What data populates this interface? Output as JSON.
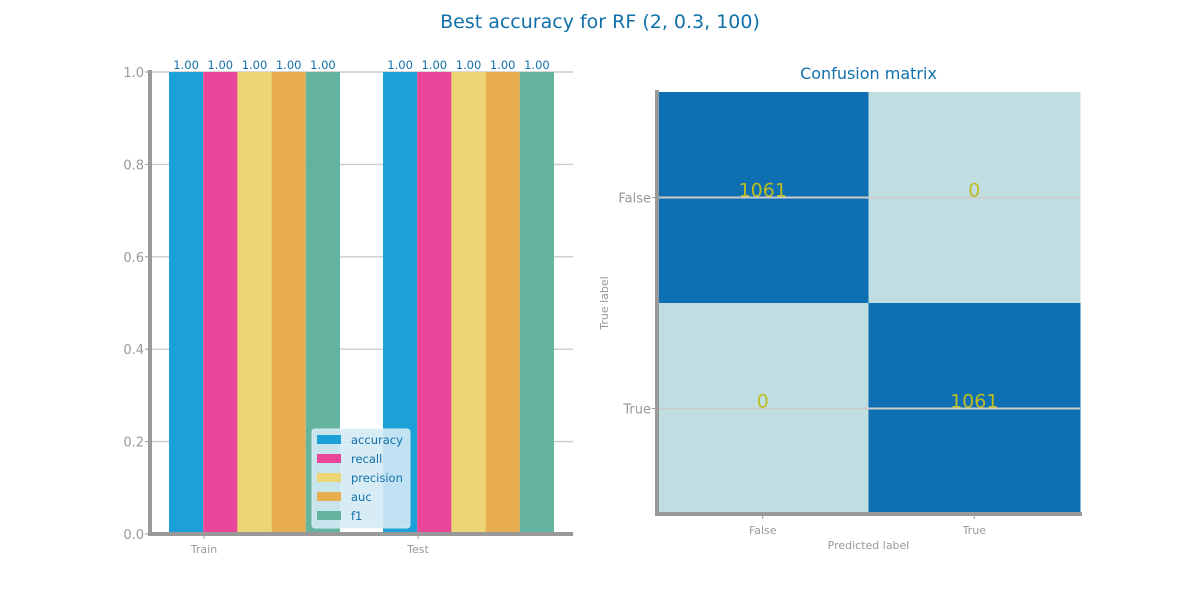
{
  "suptitle": "Best accuracy for RF (2, 0.3, 100)",
  "colors": {
    "title": "#1170aa",
    "tick": "#999999",
    "axis": "#999999",
    "grid": "#cccccc",
    "cm_text": "#bcbd22",
    "cm_high": "#0e6fb3",
    "cm_low": "#c0dee2",
    "legend_bg": "#d4eaf5"
  },
  "chart_data": [
    {
      "type": "bar",
      "title": "",
      "categories": [
        "Train",
        "Test"
      ],
      "series": [
        {
          "name": "accuracy",
          "color": "#1ba1d8",
          "values": [
            1.0,
            1.0
          ]
        },
        {
          "name": "recall",
          "color": "#ea4699",
          "values": [
            1.0,
            1.0
          ]
        },
        {
          "name": "precision",
          "color": "#ebd574",
          "values": [
            1.0,
            1.0
          ]
        },
        {
          "name": "auc",
          "color": "#e8ad4e",
          "values": [
            1.0,
            1.0
          ]
        },
        {
          "name": "f1",
          "color": "#63b39f",
          "values": [
            1.0,
            1.0
          ]
        }
      ],
      "data_labels": [
        [
          "1.00",
          "1.00",
          "1.00",
          "1.00",
          "1.00"
        ],
        [
          "1.00",
          "1.00",
          "1.00",
          "1.00",
          "1.00"
        ]
      ],
      "ylim": [
        0.0,
        1.0
      ],
      "yticks": [
        "0.0",
        "0.2",
        "0.4",
        "0.6",
        "0.8",
        "1.0"
      ],
      "grid": "horizontal",
      "legend": "lower-right"
    },
    {
      "type": "heatmap",
      "title": "Confusion matrix",
      "xlabel": "Predicted label",
      "ylabel": "True label",
      "x_ticks": [
        "False",
        "True"
      ],
      "y_ticks": [
        "False",
        "True"
      ],
      "values": [
        [
          1061,
          0
        ],
        [
          0,
          1061
        ]
      ],
      "labels": [
        [
          "1061",
          "0"
        ],
        [
          "0",
          "1061"
        ]
      ],
      "grid": "horizontal"
    }
  ]
}
